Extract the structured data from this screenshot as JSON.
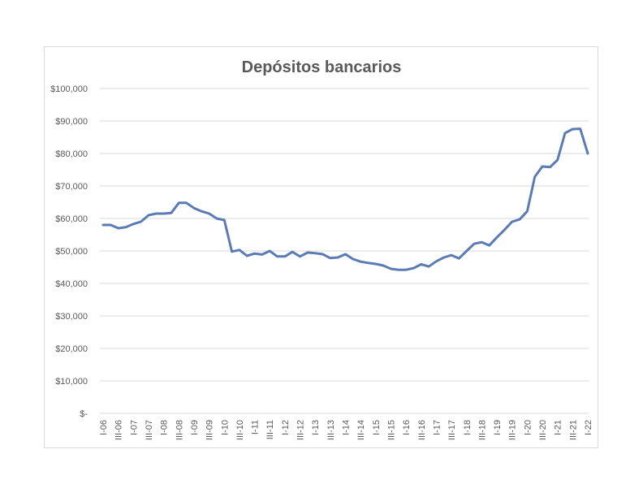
{
  "chart_data": {
    "type": "line",
    "title": "Depósitos bancarios",
    "xlabel": "",
    "ylabel": "",
    "ylim": [
      0,
      100000
    ],
    "grid": true,
    "legend": "none",
    "y_ticks": [
      0,
      10000,
      20000,
      30000,
      40000,
      50000,
      60000,
      70000,
      80000,
      90000,
      100000
    ],
    "y_tick_labels": [
      "$-",
      "$10,000",
      "$20,000",
      "$30,000",
      "$40,000",
      "$50,000",
      "$60,000",
      "$70,000",
      "$80,000",
      "$90,000",
      "$100,000"
    ],
    "x_tick_labels": [
      "I-06",
      "III-06",
      "I-07",
      "III-07",
      "I-08",
      "III-08",
      "I-09",
      "III-09",
      "I-10",
      "III-10",
      "I-11",
      "III-11",
      "I-12",
      "III-12",
      "I-13",
      "III-13",
      "I-14",
      "III-14",
      "I-15",
      "III-15",
      "I-16",
      "III-16",
      "I-17",
      "III-17",
      "I-18",
      "III-18",
      "I-19",
      "III-19",
      "I-20",
      "III-20",
      "I-21",
      "III-21",
      "I-22"
    ],
    "categories": [
      "I-06",
      "II-06",
      "III-06",
      "IV-06",
      "I-07",
      "II-07",
      "III-07",
      "IV-07",
      "I-08",
      "II-08",
      "III-08",
      "IV-08",
      "I-09",
      "II-09",
      "III-09",
      "IV-09",
      "I-10",
      "II-10",
      "III-10",
      "IV-10",
      "I-11",
      "II-11",
      "III-11",
      "IV-11",
      "I-12",
      "II-12",
      "III-12",
      "IV-12",
      "I-13",
      "II-13",
      "III-13",
      "IV-13",
      "I-14",
      "II-14",
      "III-14",
      "IV-14",
      "I-15",
      "II-15",
      "III-15",
      "IV-15",
      "I-16",
      "II-16",
      "III-16",
      "IV-16",
      "I-17",
      "II-17",
      "III-17",
      "IV-17",
      "I-18",
      "II-18",
      "III-18",
      "IV-18",
      "I-19",
      "II-19",
      "III-19",
      "IV-19",
      "I-20",
      "II-20",
      "III-20",
      "IV-20",
      "I-21",
      "II-21",
      "III-21",
      "IV-21",
      "I-22"
    ],
    "series": [
      {
        "color": "#5b7bb4",
        "values": [
          58000,
          58000,
          57000,
          57300,
          58300,
          59000,
          61000,
          61500,
          61500,
          61700,
          64800,
          64800,
          63200,
          62200,
          61500,
          60000,
          59500,
          49800,
          50300,
          48500,
          49200,
          48900,
          50000,
          48300,
          48300,
          49700,
          48300,
          49500,
          49300,
          49000,
          47800,
          48000,
          49000,
          47500,
          46700,
          46300,
          46000,
          45500,
          44500,
          44200,
          44200,
          44700,
          45900,
          45200,
          46800,
          48000,
          48700,
          47700,
          50000,
          52200,
          52700,
          51700,
          54200,
          56500,
          59000,
          59700,
          62200,
          72800,
          76000,
          75800,
          78000,
          86300,
          87500,
          87600,
          80000
        ]
      }
    ]
  }
}
